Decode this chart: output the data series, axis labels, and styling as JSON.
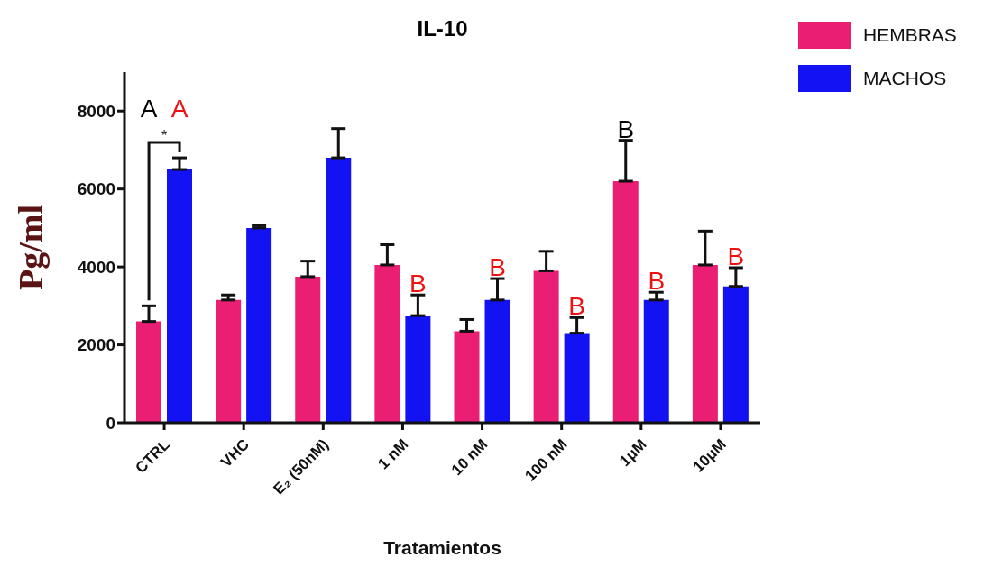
{
  "chart_data": {
    "type": "bar",
    "title": "IL-10",
    "xlabel": "Tratamientos",
    "ylabel": "Pg/ml",
    "categories": [
      "CTRL",
      "VHC",
      "E₂ (50nM)",
      "1 nM",
      "10 nM",
      "100 nM",
      "1μM",
      "10μM"
    ],
    "series": [
      {
        "name": "HEMBRAS",
        "color": "#ea1e72",
        "values": [
          2600,
          3150,
          3750,
          4050,
          2350,
          3900,
          6200,
          4050
        ],
        "errors": [
          [
            2600,
            3000
          ],
          [
            3150,
            3280
          ],
          [
            3750,
            4150
          ],
          [
            4050,
            4570
          ],
          [
            2350,
            2650
          ],
          [
            3900,
            4400
          ],
          [
            6200,
            7250
          ],
          [
            4050,
            4920
          ]
        ]
      },
      {
        "name": "MACHOS",
        "color": "#1212f2",
        "values": [
          6500,
          5000,
          6800,
          2750,
          3150,
          2300,
          3150,
          3500
        ],
        "errors": [
          [
            6500,
            6800
          ],
          [
            5000,
            5060
          ],
          [
            6800,
            7550
          ],
          [
            2750,
            3280
          ],
          [
            3150,
            3700
          ],
          [
            2300,
            2700
          ],
          [
            3150,
            3350
          ],
          [
            3500,
            3980
          ]
        ]
      }
    ],
    "annotations": [
      "A",
      "A",
      "*",
      {
        "text": "B",
        "x": "1 nM",
        "y": 3280
      },
      {
        "text": "B",
        "x": "10 nM",
        "y": 3150
      },
      {
        "text": "B",
        "x": "100 nM",
        "y": 2700
      },
      {
        "text": "B",
        "x": "1μM",
        "y": 6200
      },
      {
        "text": "B",
        "x": "1μM",
        "y": 3350
      },
      {
        "text": "B",
        "x": "10μM",
        "y": 3980
      }
    ],
    "ylim": [
      0,
      9000
    ],
    "yticks": [
      0,
      2000,
      4000,
      6000,
      8000
    ],
    "grid": false,
    "legend": "top right"
  }
}
